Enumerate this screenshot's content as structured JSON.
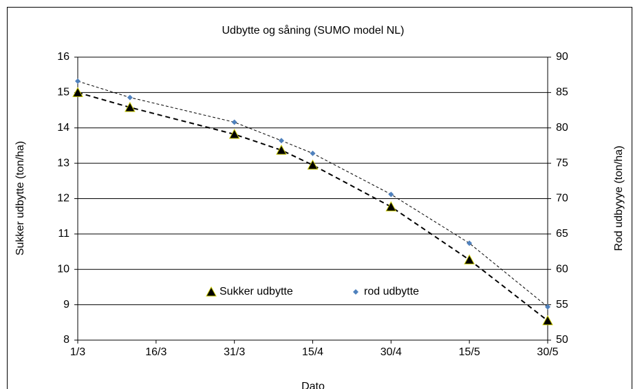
{
  "chart_data": {
    "type": "scatter",
    "title": "Udbytte og såning (SUMO model NL)",
    "xlabel": "Dato",
    "ylabel": "Sukker udbytte (ton/ha)",
    "y2label": "Rod udbyyye (ton/ha)",
    "xlim": [
      0,
      90
    ],
    "xticks": [
      {
        "value": 0,
        "label": "1/3"
      },
      {
        "value": 15,
        "label": "16/3"
      },
      {
        "value": 30,
        "label": "31/3"
      },
      {
        "value": 45,
        "label": "15/4"
      },
      {
        "value": 60,
        "label": "30/4"
      },
      {
        "value": 75,
        "label": "15/5"
      },
      {
        "value": 90,
        "label": "30/5"
      }
    ],
    "ylim": [
      8,
      16
    ],
    "yticks": [
      8,
      9,
      10,
      11,
      12,
      13,
      14,
      15,
      16
    ],
    "y2lim": [
      50,
      90
    ],
    "y2ticks": [
      50,
      55,
      60,
      65,
      70,
      75,
      80,
      85,
      90
    ],
    "grid": true,
    "series": [
      {
        "name": "Sukker udbytte",
        "color": "#000000",
        "marker": "triangle",
        "x": [
          0,
          10,
          30,
          39,
          45,
          60,
          75,
          90
        ],
        "values": [
          15.0,
          14.58,
          13.82,
          13.37,
          12.95,
          11.77,
          10.27,
          8.55
        ]
      },
      {
        "name": "rod udbytte",
        "color": "#4f81bd",
        "marker": "diamond",
        "axis": "y2",
        "x": [
          0,
          10,
          30,
          39,
          45,
          60,
          75,
          90
        ],
        "values": [
          86.6,
          84.3,
          80.8,
          78.2,
          76.4,
          70.6,
          63.7,
          54.7
        ]
      }
    ]
  }
}
